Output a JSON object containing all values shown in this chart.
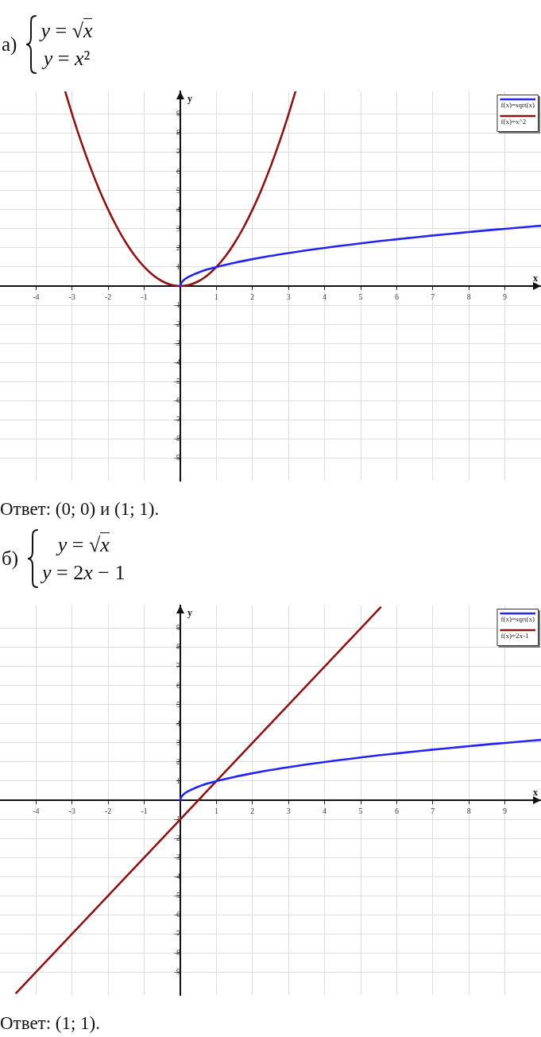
{
  "chart_data": [
    {
      "type": "line",
      "title": "а)",
      "annotations": [
        "y = √x",
        "y = x²",
        "Ответ: (0; 0) и (1; 1)."
      ],
      "xlabel": "x",
      "ylabel": "y",
      "xlim": [
        -5,
        10
      ],
      "ylim": [
        -10.2,
        10.2
      ],
      "xticks": [
        -4,
        -3,
        -2,
        -1,
        {
          "value": 0,
          "label": null
        },
        1,
        2,
        3,
        4,
        5,
        6,
        7,
        8,
        9
      ],
      "yticks": [
        -9,
        -8,
        -7,
        -6,
        -5,
        -4,
        -3,
        -2,
        -1,
        {
          "value": 0,
          "label": null
        },
        1,
        2,
        3,
        4,
        5,
        6,
        7,
        8,
        9
      ],
      "grid": true,
      "legend": "top right",
      "marker": "none",
      "line_style": "solid",
      "series": [
        {
          "name": "f(x)=sqrt(x)",
          "color": "#2424f0",
          "x": [
            0,
            0.02,
            0.05,
            0.1,
            0.2,
            0.35,
            0.5,
            0.75,
            1,
            1.5,
            2,
            2.5,
            3,
            3.5,
            4,
            4.5,
            5,
            5.5,
            6,
            6.5,
            7,
            7.5,
            8,
            8.5,
            9,
            9.5,
            10
          ],
          "values": [
            0,
            0.14,
            0.22,
            0.32,
            0.45,
            0.59,
            0.71,
            0.87,
            1,
            1.22,
            1.41,
            1.58,
            1.73,
            1.87,
            2,
            2.12,
            2.24,
            2.35,
            2.45,
            2.55,
            2.65,
            2.74,
            2.83,
            2.92,
            3,
            3.08,
            3.16
          ]
        },
        {
          "name": "f(x)=x^2",
          "color": "#8b1414",
          "x": [
            -3.19,
            -3,
            -2.75,
            -2.5,
            -2.25,
            -2,
            -1.75,
            -1.5,
            -1.25,
            -1,
            -0.75,
            -0.5,
            -0.25,
            0,
            0.25,
            0.5,
            0.75,
            1,
            1.25,
            1.5,
            1.75,
            2,
            2.25,
            2.5,
            2.75,
            3,
            3.19
          ],
          "values": [
            10.18,
            9,
            7.56,
            6.25,
            5.06,
            4,
            3.06,
            2.25,
            1.56,
            1,
            0.56,
            0.25,
            0.06,
            0,
            0.06,
            0.25,
            0.56,
            1,
            1.56,
            2.25,
            3.06,
            4,
            5.06,
            6.25,
            7.56,
            9,
            10.18
          ]
        }
      ]
    },
    {
      "type": "line",
      "title": "б)",
      "annotations": [
        "y = √x",
        "y = 2x − 1",
        "Ответ: (1; 1)."
      ],
      "xlabel": "x",
      "ylabel": "y",
      "xlim": [
        -5,
        10
      ],
      "ylim": [
        -10.2,
        10.2
      ],
      "xticks": [
        -4,
        -3,
        -2,
        -1,
        {
          "value": 0,
          "label": null
        },
        1,
        2,
        3,
        4,
        5,
        6,
        7,
        8,
        9
      ],
      "yticks": [
        -9,
        -8,
        -7,
        -6,
        -5,
        -4,
        -3,
        -2,
        -1,
        {
          "value": 0,
          "label": null
        },
        1,
        2,
        3,
        4,
        5,
        6,
        7,
        8,
        9
      ],
      "grid": true,
      "legend": "top right",
      "marker": "none",
      "line_style": "solid",
      "series": [
        {
          "name": "f(x)=sqrt(x)",
          "color": "#2424f0",
          "x": [
            0,
            0.02,
            0.05,
            0.1,
            0.2,
            0.35,
            0.5,
            0.75,
            1,
            1.5,
            2,
            2.5,
            3,
            3.5,
            4,
            4.5,
            5,
            5.5,
            6,
            6.5,
            7,
            7.5,
            8,
            8.5,
            9,
            9.5,
            10
          ],
          "values": [
            0,
            0.14,
            0.22,
            0.32,
            0.45,
            0.59,
            0.71,
            0.87,
            1,
            1.22,
            1.41,
            1.58,
            1.73,
            1.87,
            2,
            2.12,
            2.24,
            2.35,
            2.45,
            2.55,
            2.65,
            2.74,
            2.83,
            2.92,
            3,
            3.08,
            3.16
          ]
        },
        {
          "name": "f(x)=2x-1",
          "color": "#8b1414",
          "x": [
            -4.55,
            -4,
            -3,
            -2,
            -1,
            0,
            1,
            2,
            3,
            4,
            5,
            5.55
          ],
          "values": [
            -10.1,
            -9,
            -7,
            -5,
            -3,
            -1,
            1,
            3,
            5,
            7,
            9,
            10.1
          ]
        }
      ]
    }
  ]
}
